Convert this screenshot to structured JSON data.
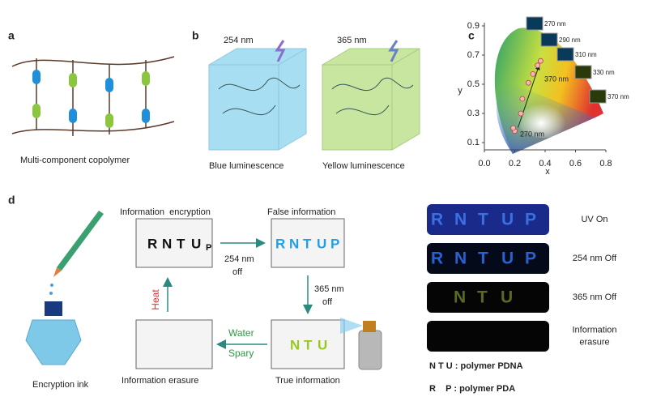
{
  "chart_data": {
    "type": "scatter",
    "xlabel": "x",
    "ylabel": "y",
    "x": [
      0.2,
      0.19,
      0.24,
      0.25,
      0.29,
      0.32,
      0.35,
      0.37
    ],
    "y": [
      0.18,
      0.2,
      0.3,
      0.4,
      0.51,
      0.57,
      0.63,
      0.66
    ],
    "color": "#f2b8b8",
    "xlim": [
      0,
      0.8
    ],
    "ylim": [
      0.05,
      0.9
    ],
    "xticks": [
      {
        "value": 0,
        "label": "0.0"
      },
      0.2,
      0.4,
      0.6,
      0.8
    ],
    "yticks": [
      0.1,
      0.3,
      0.5,
      0.7,
      0.9
    ],
    "annotations": [
      "270 nm",
      "370 nm"
    ],
    "insets": [
      "270 nm",
      "290 nm",
      "310 nm",
      "330 nm",
      "370 nm"
    ]
  },
  "panel_labels": [
    "a",
    "b",
    "c",
    "d"
  ],
  "a": {
    "caption": "Multi-component copolymer"
  },
  "b": {
    "excitations": [
      "254 nm",
      "365 nm"
    ],
    "captions": [
      "Blue luminescence",
      "Yellow luminescence"
    ]
  },
  "d": {
    "ink": "Encryption ink",
    "states": [
      "Information  encryption",
      "False information",
      "True information",
      "Information erasure"
    ],
    "encrypted": [
      "R",
      "N",
      "T",
      "U",
      "P"
    ],
    "false_letters": [
      "R",
      "N",
      "T",
      "U",
      "P"
    ],
    "true_letters": [
      "N",
      "T",
      "U"
    ],
    "steps": {
      "uv254": [
        "254 nm",
        "off"
      ],
      "uv365": [
        "365 nm",
        "off"
      ],
      "heat": "Heat",
      "water": [
        "Water",
        "Spary"
      ]
    },
    "uv_panels": {
      "labels": [
        [
          "UV On"
        ],
        [
          "254 nm Off"
        ],
        [
          "365 nm Off"
        ],
        [
          "Information",
          "erasure"
        ]
      ],
      "letters": [
        [
          "R",
          "N",
          "T",
          "U",
          "P"
        ],
        [
          "R",
          "N",
          "T",
          "U",
          "P"
        ],
        [
          "N",
          "T",
          "U"
        ]
      ]
    },
    "legend": [
      "N T U : polymer PDNA",
      "R    P : polymer PDA"
    ]
  }
}
